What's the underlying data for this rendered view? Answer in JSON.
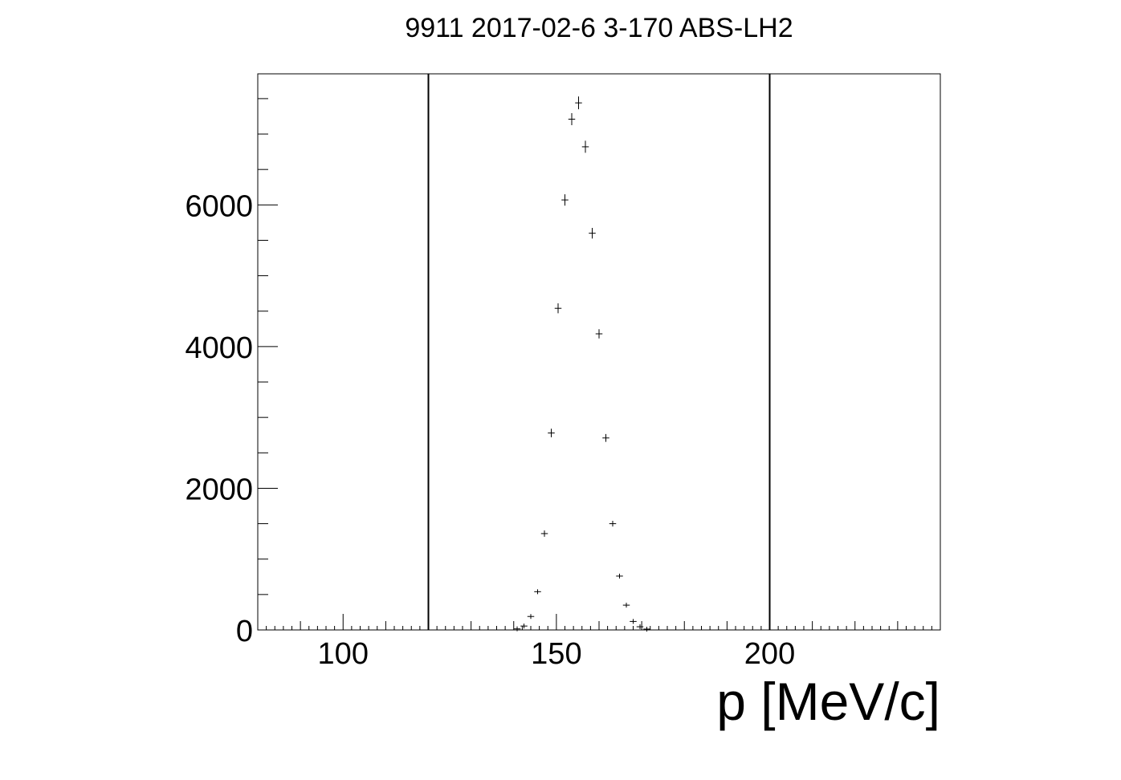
{
  "chart_data": {
    "type": "scatter",
    "title": "9911 2017-02-6 3-170 ABS-LH2",
    "xlabel": "p [MeV/c]",
    "ylabel": "",
    "xlim": [
      80,
      240
    ],
    "ylim": [
      0,
      7850
    ],
    "grid": false,
    "legend": "none",
    "x_ticks": [
      100,
      150,
      200
    ],
    "y_ticks": [
      0,
      2000,
      4000,
      6000
    ],
    "vertical_lines": [
      120,
      200
    ],
    "series": [
      {
        "points": [
          {
            "x": 140.8,
            "y": 15,
            "xerr": 0.8,
            "yerr": 8
          },
          {
            "x": 142.4,
            "y": 55,
            "xerr": 0.8,
            "yerr": 10
          },
          {
            "x": 144.0,
            "y": 190,
            "xerr": 0.8,
            "yerr": 20
          },
          {
            "x": 145.6,
            "y": 540,
            "xerr": 0.8,
            "yerr": 30
          },
          {
            "x": 147.2,
            "y": 1360,
            "xerr": 0.8,
            "yerr": 45
          },
          {
            "x": 148.8,
            "y": 2780,
            "xerr": 0.8,
            "yerr": 60
          },
          {
            "x": 150.4,
            "y": 4540,
            "xerr": 0.8,
            "yerr": 70
          },
          {
            "x": 152.0,
            "y": 6070,
            "xerr": 0.8,
            "yerr": 80
          },
          {
            "x": 153.6,
            "y": 7210,
            "xerr": 0.8,
            "yerr": 85
          },
          {
            "x": 155.2,
            "y": 7440,
            "xerr": 0.8,
            "yerr": 90
          },
          {
            "x": 156.8,
            "y": 6820,
            "xerr": 0.8,
            "yerr": 85
          },
          {
            "x": 158.4,
            "y": 5600,
            "xerr": 0.8,
            "yerr": 75
          },
          {
            "x": 160.0,
            "y": 4180,
            "xerr": 0.8,
            "yerr": 65
          },
          {
            "x": 161.6,
            "y": 2710,
            "xerr": 0.8,
            "yerr": 55
          },
          {
            "x": 163.2,
            "y": 1500,
            "xerr": 0.8,
            "yerr": 40
          },
          {
            "x": 164.8,
            "y": 760,
            "xerr": 0.8,
            "yerr": 30
          },
          {
            "x": 166.4,
            "y": 350,
            "xerr": 0.8,
            "yerr": 20
          },
          {
            "x": 168.0,
            "y": 120,
            "xerr": 0.8,
            "yerr": 12
          },
          {
            "x": 169.6,
            "y": 45,
            "xerr": 0.8,
            "yerr": 8
          },
          {
            "x": 171.2,
            "y": 12,
            "xerr": 0.8,
            "yerr": 5
          }
        ]
      }
    ]
  }
}
